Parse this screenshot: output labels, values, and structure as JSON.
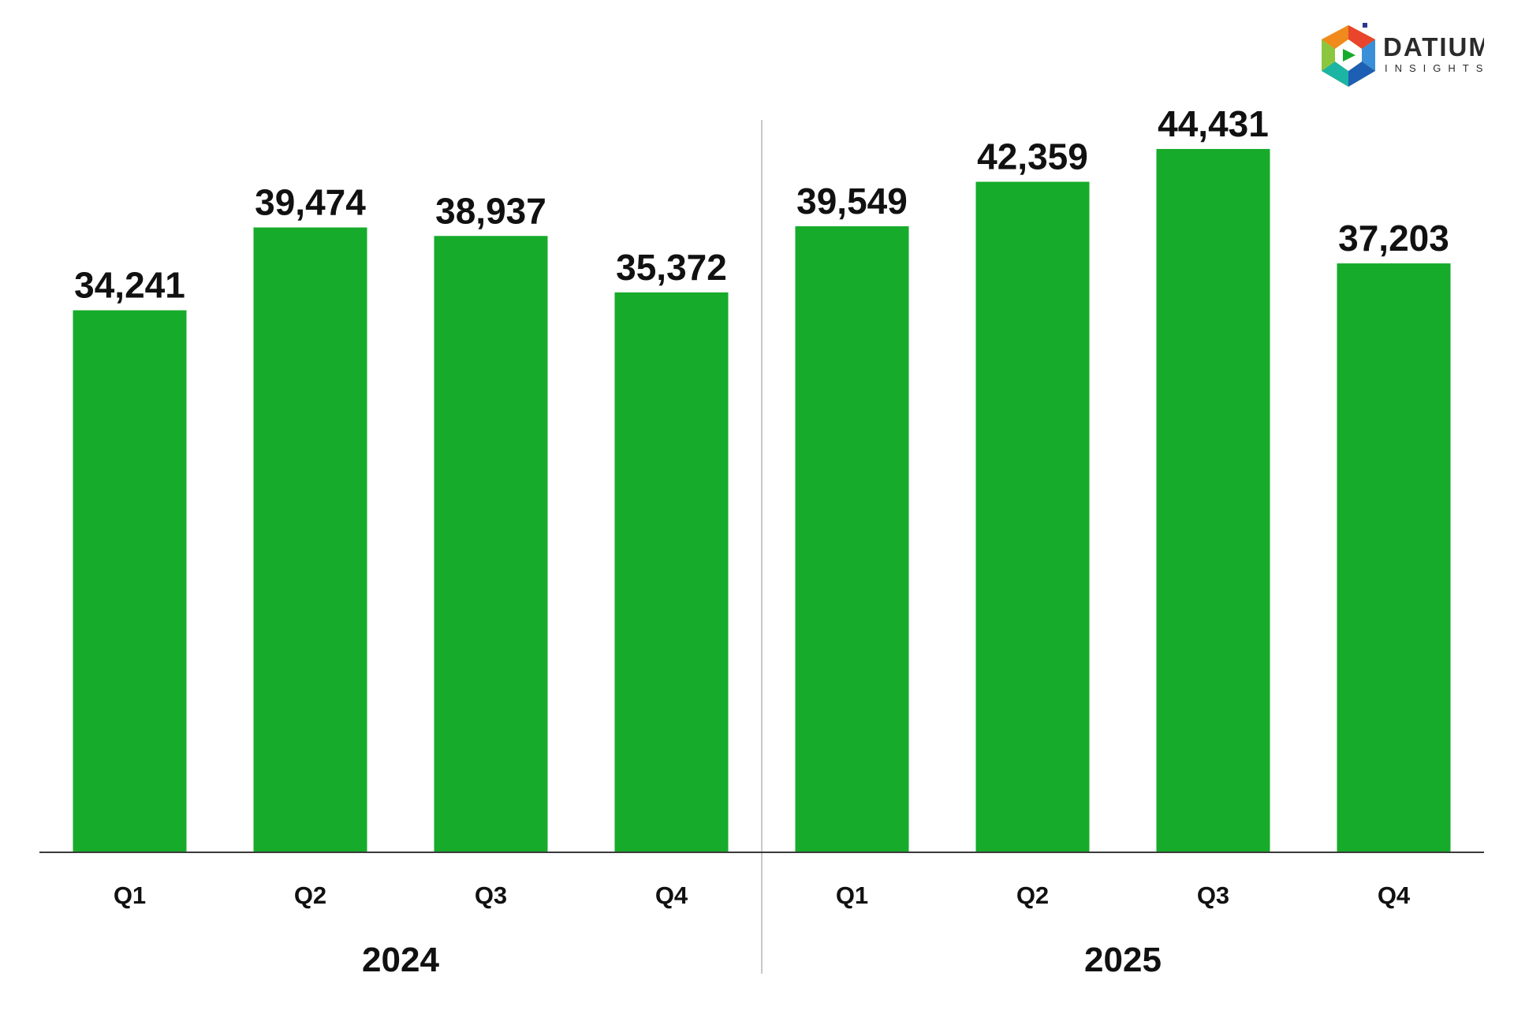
{
  "brand": {
    "name": "DATIUM",
    "tagline": "INSIGHTS"
  },
  "colors": {
    "bar": "#16ab2a",
    "axis": "#3a3a3a",
    "divider": "#b5b5b5",
    "text": "#111111"
  },
  "chart_data": {
    "type": "bar",
    "title": "",
    "xlabel": "",
    "ylabel": "",
    "ylim": [
      0,
      50000
    ],
    "grid": false,
    "groups": [
      {
        "label": "2024",
        "categories": [
          "Q1",
          "Q2",
          "Q3",
          "Q4"
        ],
        "values": [
          34241,
          39474,
          38937,
          35372
        ],
        "value_labels": [
          "34,241",
          "39,474",
          "38,937",
          "35,372"
        ]
      },
      {
        "label": "2025",
        "categories": [
          "Q1",
          "Q2",
          "Q3",
          "Q4"
        ],
        "values": [
          39549,
          42359,
          44431,
          37203
        ],
        "value_labels": [
          "39,549",
          "42,359",
          "44,431",
          "37,203"
        ]
      }
    ]
  }
}
